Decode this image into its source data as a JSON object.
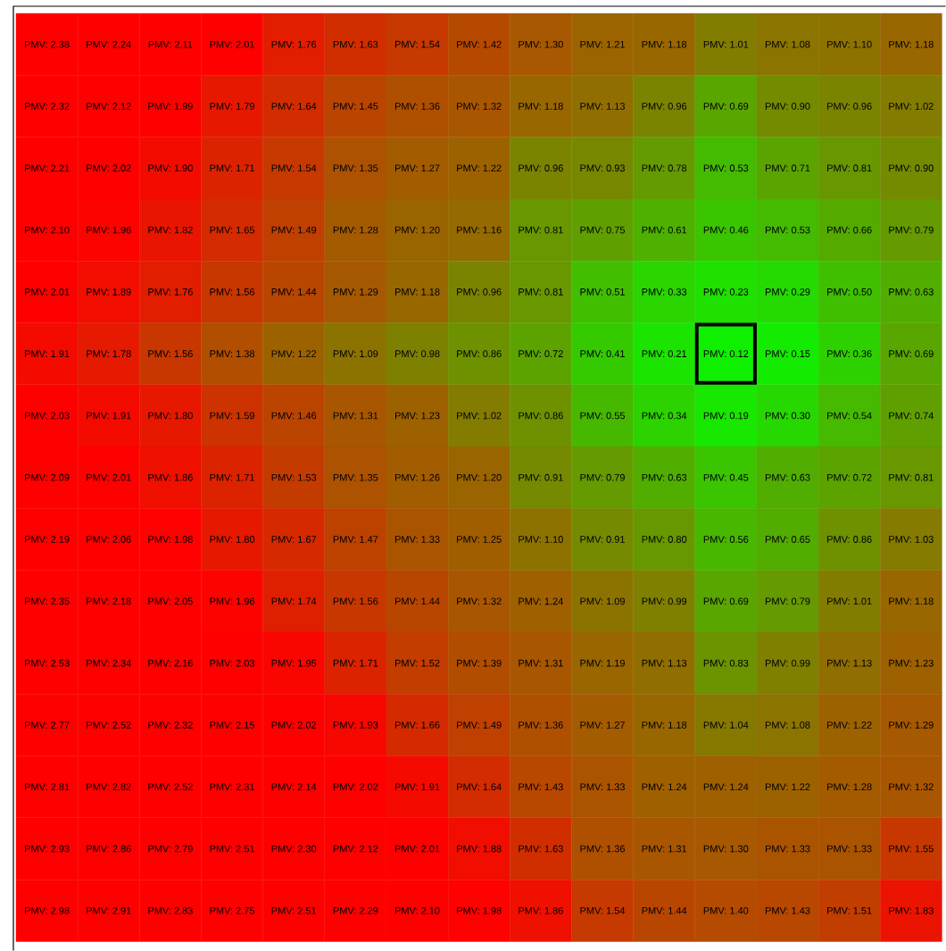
{
  "chart_data": {
    "type": "heatmap",
    "categories": [
      null,
      null,
      null,
      null,
      null,
      null,
      null,
      null,
      null,
      null,
      null,
      null,
      null,
      null,
      null
    ],
    "y_categories": [
      null,
      null,
      null,
      null,
      null,
      null,
      null,
      null,
      null,
      null,
      null,
      null,
      null,
      null,
      null
    ],
    "cells": [
      [
        2.38,
        2.24,
        2.11,
        2.01,
        1.76,
        1.63,
        1.54,
        1.42,
        1.3,
        1.21,
        1.18,
        1.01,
        1.08,
        1.1,
        1.18
      ],
      [
        2.32,
        2.12,
        1.99,
        1.79,
        1.64,
        1.45,
        1.36,
        1.32,
        1.18,
        1.13,
        0.96,
        0.69,
        0.9,
        0.96,
        1.02
      ],
      [
        2.21,
        2.02,
        1.9,
        1.71,
        1.54,
        1.35,
        1.27,
        1.22,
        0.96,
        0.93,
        0.78,
        0.53,
        0.71,
        0.81,
        0.9
      ],
      [
        2.1,
        1.96,
        1.82,
        1.65,
        1.49,
        1.28,
        1.2,
        1.16,
        0.81,
        0.75,
        0.61,
        0.46,
        0.53,
        0.66,
        0.79
      ],
      [
        2.01,
        1.89,
        1.76,
        1.56,
        1.44,
        1.29,
        1.18,
        0.96,
        0.81,
        0.51,
        0.33,
        0.23,
        0.29,
        0.5,
        0.63
      ],
      [
        1.91,
        1.78,
        1.56,
        1.38,
        1.22,
        1.09,
        0.98,
        0.86,
        0.72,
        0.41,
        0.21,
        0.12,
        0.15,
        0.36,
        0.69
      ],
      [
        2.03,
        1.91,
        1.8,
        1.59,
        1.46,
        1.31,
        1.23,
        1.02,
        0.86,
        0.55,
        0.34,
        0.19,
        0.3,
        0.54,
        0.74
      ],
      [
        2.09,
        2.01,
        1.86,
        1.71,
        1.53,
        1.35,
        1.26,
        1.2,
        0.91,
        0.79,
        0.63,
        0.45,
        0.63,
        0.72,
        0.81
      ],
      [
        2.19,
        2.06,
        1.98,
        1.8,
        1.67,
        1.47,
        1.33,
        1.25,
        1.1,
        0.91,
        0.8,
        0.56,
        0.65,
        0.86,
        1.03
      ],
      [
        2.35,
        2.18,
        2.05,
        1.96,
        1.74,
        1.56,
        1.44,
        1.32,
        1.24,
        1.09,
        0.99,
        0.69,
        0.79,
        1.01,
        1.18
      ],
      [
        2.53,
        2.34,
        2.16,
        2.03,
        1.95,
        1.71,
        1.52,
        1.39,
        1.31,
        1.19,
        1.13,
        0.83,
        0.99,
        1.13,
        1.23
      ],
      [
        2.77,
        2.52,
        2.32,
        2.15,
        2.02,
        1.93,
        1.66,
        1.49,
        1.36,
        1.27,
        1.18,
        1.04,
        1.08,
        1.22,
        1.29
      ],
      [
        2.81,
        2.82,
        2.52,
        2.31,
        2.14,
        2.02,
        1.91,
        1.64,
        1.43,
        1.33,
        1.24,
        1.24,
        1.22,
        1.28,
        1.32
      ],
      [
        2.93,
        2.86,
        2.79,
        2.51,
        2.3,
        2.12,
        2.01,
        1.88,
        1.63,
        1.36,
        1.31,
        1.3,
        1.33,
        1.33,
        1.55
      ],
      [
        2.98,
        2.91,
        2.83,
        2.75,
        2.51,
        2.29,
        2.1,
        1.98,
        1.86,
        1.54,
        1.44,
        1.4,
        1.43,
        1.51,
        1.83
      ]
    ],
    "cell_labels": [
      [
        "PMV: 2.38",
        "PMV: 2.24",
        "PMV: 2.11",
        "PMV: 2.01",
        "PMV: 1.76",
        "PMV: 1.63",
        "PMV: 1.54",
        "PMV: 1.42",
        "PMV: 1.30",
        "PMV: 1.21",
        "PMV: 1.18",
        "PMV: 1.01",
        "PMV: 1.08",
        "PMV: 1.10",
        "PMV: 1.18"
      ],
      [
        "PMV: 2.32",
        "PMV: 2.12",
        "PMV: 1.99",
        "PMV: 1.79",
        "PMV: 1.64",
        "PMV: 1.45",
        "PMV: 1.36",
        "PMV: 1.32",
        "PMV: 1.18",
        "PMV: 1.13",
        "PMV: 0.96",
        "PMV: 0.69",
        "PMV: 0.90",
        "PMV: 0.96",
        "PMV: 1.02"
      ],
      [
        "PMV: 2.21",
        "PMV: 2.02",
        "PMV: 1.90",
        "PMV: 1.71",
        "PMV: 1.54",
        "PMV: 1.35",
        "PMV: 1.27",
        "PMV: 1.22",
        "PMV: 0.96",
        "PMV: 0.93",
        "PMV: 0.78",
        "PMV: 0.53",
        "PMV: 0.71",
        "PMV: 0.81",
        "PMV: 0.90"
      ],
      [
        "PMV: 2.10",
        "PMV: 1.96",
        "PMV: 1.82",
        "PMV: 1.65",
        "PMV: 1.49",
        "PMV: 1.28",
        "PMV: 1.20",
        "PMV: 1.16",
        "PMV: 0.81",
        "PMV: 0.75",
        "PMV: 0.61",
        "PMV: 0.46",
        "PMV: 0.53",
        "PMV: 0.66",
        "PMV: 0.79"
      ],
      [
        "PMV: 2.01",
        "PMV: 1.89",
        "PMV: 1.76",
        "PMV: 1.56",
        "PMV: 1.44",
        "PMV: 1.29",
        "PMV: 1.18",
        "PMV: 0.96",
        "PMV: 0.81",
        "PMV: 0.51",
        "PMV: 0.33",
        "PMV: 0.23",
        "PMV: 0.29",
        "PMV: 0.50",
        "PMV: 0.63"
      ],
      [
        "PMV: 1.91",
        "PMV: 1.78",
        "PMV: 1.56",
        "PMV: 1.38",
        "PMV: 1.22",
        "PMV: 1.09",
        "PMV: 0.98",
        "PMV: 0.86",
        "PMV: 0.72",
        "PMV: 0.41",
        "PMV: 0.21",
        "PMV: 0.12",
        "PMV: 0.15",
        "PMV: 0.36",
        "PMV: 0.69"
      ],
      [
        "PMV: 2.03",
        "PMV: 1.91",
        "PMV: 1.80",
        "PMV: 1.59",
        "PMV: 1.46",
        "PMV: 1.31",
        "PMV: 1.23",
        "PMV: 1.02",
        "PMV: 0.86",
        "PMV: 0.55",
        "PMV: 0.34",
        "PMV: 0.19",
        "PMV: 0.30",
        "PMV: 0.54",
        "PMV: 0.74"
      ],
      [
        "PMV: 2.09",
        "PMV: 2.01",
        "PMV: 1.86",
        "PMV: 1.71",
        "PMV: 1.53",
        "PMV: 1.35",
        "PMV: 1.26",
        "PMV: 1.20",
        "PMV: 0.91",
        "PMV: 0.79",
        "PMV: 0.63",
        "PMV: 0.45",
        "PMV: 0.63",
        "PMV: 0.72",
        "PMV: 0.81"
      ],
      [
        "PMV: 2.19",
        "PMV: 2.06",
        "PMV: 1.98",
        "PMV: 1.80",
        "PMV: 1.67",
        "PMV: 1.47",
        "PMV: 1.33",
        "PMV: 1.25",
        "PMV: 1.10",
        "PMV: 0.91",
        "PMV: 0.80",
        "PMV: 0.56",
        "PMV: 0.65",
        "PMV: 0.86",
        "PMV: 1.03"
      ],
      [
        "PMV: 2.35",
        "PMV: 2.18",
        "PMV: 2.05",
        "PMV: 1.96",
        "PMV: 1.74",
        "PMV: 1.56",
        "PMV: 1.44",
        "PMV: 1.32",
        "PMV: 1.24",
        "PMV: 1.09",
        "PMV: 0.99",
        "PMV: 0.69",
        "PMV: 0.79",
        "PMV: 1.01",
        "PMV: 1.18"
      ],
      [
        "PMV: 2.53",
        "PMV: 2.34",
        "PMV: 2.16",
        "PMV: 2.03",
        "PMV: 1.95",
        "PMV: 1.71",
        "PMV: 1.52",
        "PMV: 1.39",
        "PMV: 1.31",
        "PMV: 1.19",
        "PMV: 1.13",
        "PMV: 0.83",
        "PMV: 0.99",
        "PMV: 1.13",
        "PMV: 1.23"
      ],
      [
        "PMV: 2.77",
        "PMV: 2.52",
        "PMV: 2.32",
        "PMV: 2.15",
        "PMV: 2.02",
        "PMV: 1.93",
        "PMV: 1.66",
        "PMV: 1.49",
        "PMV: 1.36",
        "PMV: 1.27",
        "PMV: 1.18",
        "PMV: 1.04",
        "PMV: 1.08",
        "PMV: 1.22",
        "PMV: 1.29"
      ],
      [
        "PMV: 2.81",
        "PMV: 2.82",
        "PMV: 2.52",
        "PMV: 2.31",
        "PMV: 2.14",
        "PMV: 2.02",
        "PMV: 1.91",
        "PMV: 1.64",
        "PMV: 1.43",
        "PMV: 1.33",
        "PMV: 1.24",
        "PMV: 1.24",
        "PMV: 1.22",
        "PMV: 1.28",
        "PMV: 1.32"
      ],
      [
        "PMV: 2.93",
        "PMV: 2.86",
        "PMV: 2.79",
        "PMV: 2.51",
        "PMV: 2.30",
        "PMV: 2.12",
        "PMV: 2.01",
        "PMV: 1.88",
        "PMV: 1.63",
        "PMV: 1.36",
        "PMV: 1.31",
        "PMV: 1.30",
        "PMV: 1.33",
        "PMV: 1.33",
        "PMV: 1.55"
      ],
      [
        "PMV: 2.98",
        "PMV: 2.91",
        "PMV: 2.83",
        "PMV: 2.75",
        "PMV: 2.51",
        "PMV: 2.29",
        "PMV: 2.10",
        "PMV: 1.98",
        "PMV: 1.86",
        "PMV: 1.54",
        "PMV: 1.44",
        "PMV: 1.40",
        "PMV: 1.43",
        "PMV: 1.51",
        "PMV: 1.83"
      ]
    ]
  }
}
